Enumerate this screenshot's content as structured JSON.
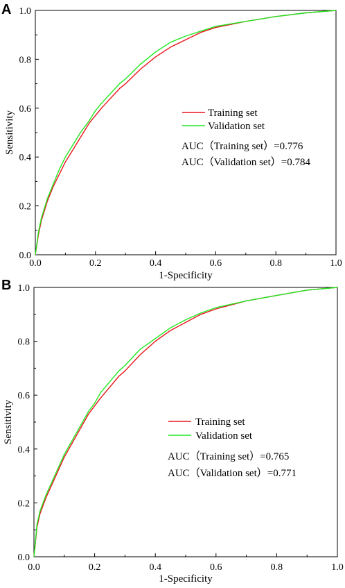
{
  "chart_data": [
    {
      "type": "line",
      "panel_label": "A",
      "xlabel": "1-Specificity",
      "ylabel": "Sensitivity",
      "xlim": [
        0,
        1
      ],
      "ylim": [
        0,
        1
      ],
      "xticks": [
        "0.0",
        "0.2",
        "0.4",
        "0.6",
        "0.8",
        "1.0"
      ],
      "yticks": [
        "0.0",
        "0.2",
        "0.4",
        "0.6",
        "0.8",
        "1.0"
      ],
      "grid": false,
      "legend_position": "center-right",
      "series": [
        {
          "name": "Training set",
          "color": "#e8141b",
          "x": [
            0,
            0.01,
            0.02,
            0.04,
            0.06,
            0.08,
            0.1,
            0.12,
            0.15,
            0.18,
            0.2,
            0.22,
            0.25,
            0.28,
            0.3,
            0.35,
            0.4,
            0.45,
            0.5,
            0.55,
            0.6,
            0.7,
            0.8,
            0.9,
            1.0
          ],
          "y": [
            0,
            0.08,
            0.14,
            0.22,
            0.28,
            0.33,
            0.38,
            0.42,
            0.48,
            0.54,
            0.57,
            0.6,
            0.64,
            0.68,
            0.7,
            0.76,
            0.81,
            0.85,
            0.88,
            0.91,
            0.93,
            0.955,
            0.975,
            0.99,
            1.0
          ]
        },
        {
          "name": "Validation set",
          "color": "#1ee81e",
          "x": [
            0,
            0.01,
            0.02,
            0.04,
            0.06,
            0.08,
            0.1,
            0.12,
            0.15,
            0.18,
            0.2,
            0.22,
            0.25,
            0.28,
            0.3,
            0.35,
            0.4,
            0.45,
            0.5,
            0.55,
            0.6,
            0.7,
            0.8,
            0.9,
            1.0
          ],
          "y": [
            0,
            0.09,
            0.15,
            0.23,
            0.29,
            0.35,
            0.4,
            0.44,
            0.5,
            0.55,
            0.59,
            0.62,
            0.66,
            0.7,
            0.72,
            0.78,
            0.83,
            0.87,
            0.895,
            0.915,
            0.935,
            0.955,
            0.975,
            0.99,
            1.0
          ]
        }
      ],
      "annotations": [
        "AUC（Training set）=0.776",
        "AUC（Validation set）=0.784"
      ]
    },
    {
      "type": "line",
      "panel_label": "B",
      "xlabel": "1-Specificity",
      "ylabel": "Sensitivity",
      "xlim": [
        0,
        1
      ],
      "ylim": [
        0,
        1
      ],
      "xticks": [
        "0.0",
        "0.2",
        "0.4",
        "0.6",
        "0.8",
        "1.0"
      ],
      "yticks": [
        "0.0",
        "0.2",
        "0.4",
        "0.6",
        "0.8",
        "1.0"
      ],
      "grid": false,
      "legend_position": "center-right",
      "series": [
        {
          "name": "Training set",
          "color": "#e8141b",
          "x": [
            0,
            0.01,
            0.02,
            0.04,
            0.06,
            0.08,
            0.1,
            0.12,
            0.15,
            0.18,
            0.2,
            0.22,
            0.25,
            0.28,
            0.3,
            0.35,
            0.4,
            0.45,
            0.5,
            0.55,
            0.6,
            0.7,
            0.8,
            0.9,
            1.0
          ],
          "y": [
            0,
            0.11,
            0.16,
            0.22,
            0.27,
            0.32,
            0.37,
            0.41,
            0.47,
            0.53,
            0.56,
            0.59,
            0.63,
            0.67,
            0.69,
            0.75,
            0.8,
            0.84,
            0.87,
            0.9,
            0.92,
            0.95,
            0.97,
            0.99,
            1.0
          ]
        },
        {
          "name": "Validation set",
          "color": "#1ee81e",
          "x": [
            0,
            0.01,
            0.02,
            0.04,
            0.06,
            0.08,
            0.1,
            0.12,
            0.15,
            0.18,
            0.2,
            0.22,
            0.25,
            0.28,
            0.3,
            0.35,
            0.4,
            0.45,
            0.5,
            0.55,
            0.6,
            0.7,
            0.8,
            0.9,
            1.0
          ],
          "y": [
            0,
            0.12,
            0.17,
            0.23,
            0.28,
            0.33,
            0.38,
            0.42,
            0.48,
            0.54,
            0.57,
            0.61,
            0.65,
            0.69,
            0.71,
            0.77,
            0.81,
            0.85,
            0.88,
            0.905,
            0.925,
            0.95,
            0.97,
            0.99,
            1.0
          ]
        }
      ],
      "annotations": [
        "AUC（Training set）=0.765",
        "AUC（Validation set）=0.771"
      ]
    }
  ]
}
